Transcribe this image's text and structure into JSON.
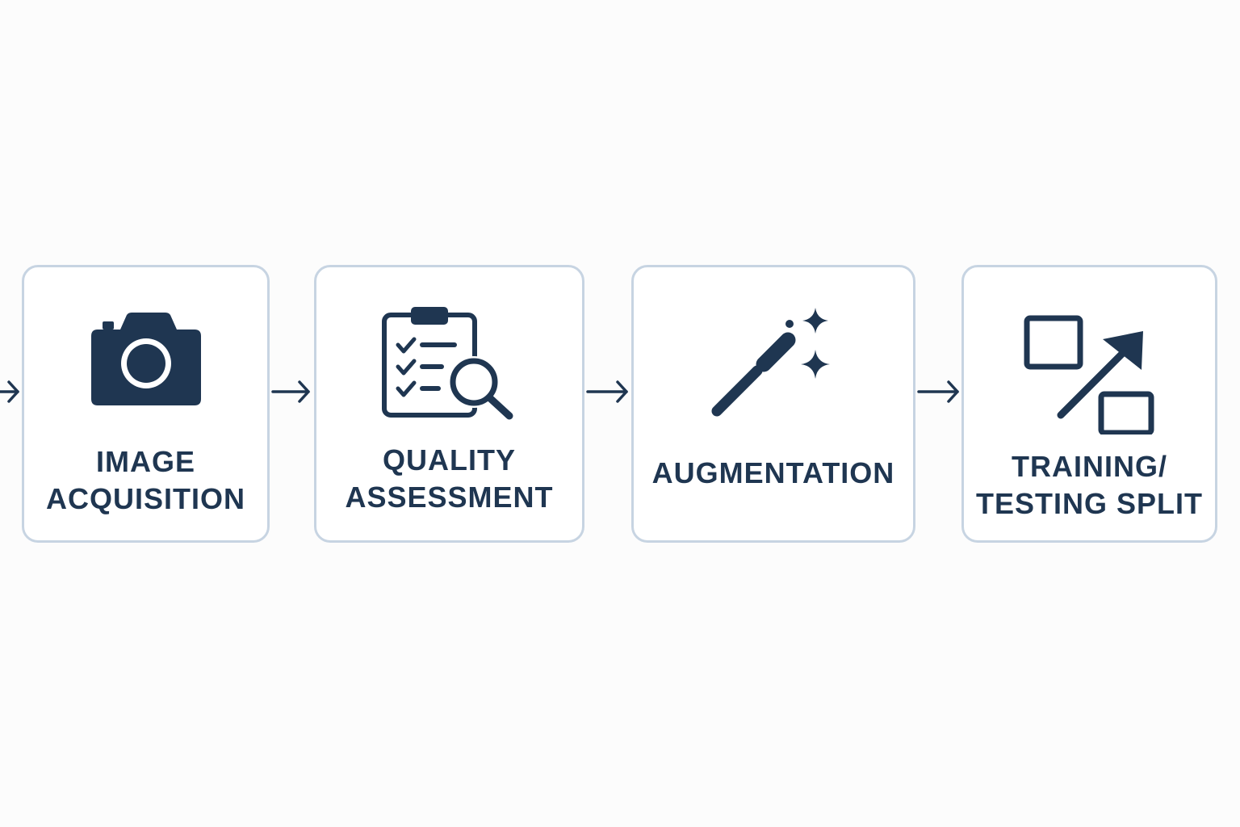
{
  "diagram": {
    "colors": {
      "background": "#fcfcfc",
      "card_border": "#c7d4e2",
      "ink": "#1f3651"
    },
    "steps": [
      {
        "icon": "camera-icon",
        "label_lines": [
          "IMAGE",
          "ACQUISITION"
        ]
      },
      {
        "icon": "clipboard-magnifier-icon",
        "label_lines": [
          "QUALITY",
          "ASSESSMENT"
        ]
      },
      {
        "icon": "magic-wand-icon",
        "label_lines": [
          "AUGMENTATION"
        ]
      },
      {
        "icon": "split-arrow-icon",
        "label_lines": [
          "TRAINING/",
          "TESTING SPLIT"
        ]
      }
    ]
  }
}
